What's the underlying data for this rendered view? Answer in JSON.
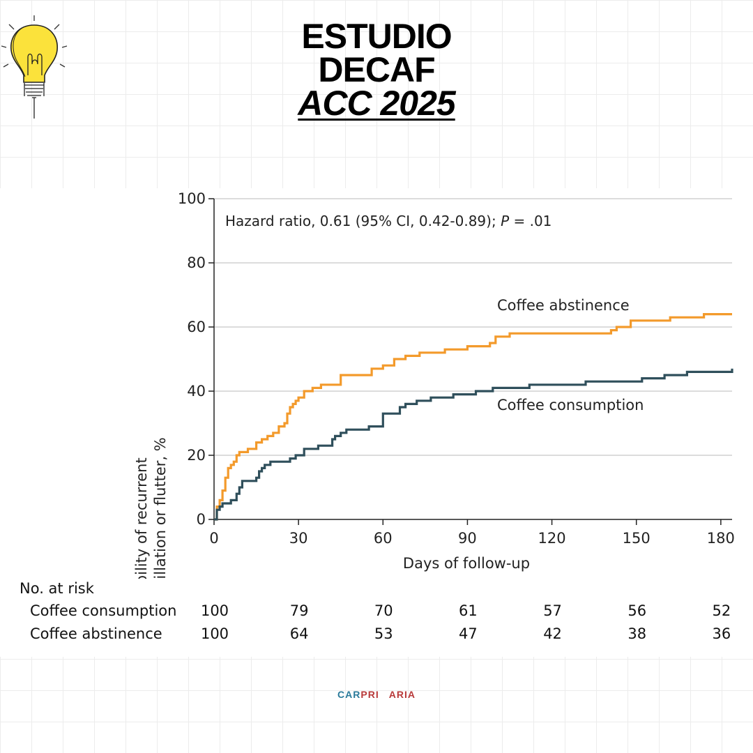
{
  "header": {
    "line1": "ESTUDIO",
    "line2": "DECAF",
    "line3": "ACC 2025"
  },
  "chart_data": {
    "type": "line",
    "step": true,
    "annotation_prefix": "Hazard ratio, 0.61 (95% CI, 0.42-0.89); ",
    "annotation_p": "P",
    "annotation_suffix": " = .01",
    "xlabel": "Days of follow-up",
    "ylabel_line1": "Probability of recurrent",
    "ylabel_line2": "atrial fibrillation or flutter, %",
    "xlim": [
      0,
      184
    ],
    "ylim": [
      0,
      100
    ],
    "xticks": [
      0,
      30,
      60,
      90,
      120,
      150,
      180
    ],
    "yticks": [
      0,
      20,
      40,
      60,
      80,
      100
    ],
    "grid": "horizontal",
    "series": [
      {
        "name": "Coffee abstinence",
        "color": "#f39a2b",
        "x": [
          0,
          1,
          2,
          3,
          4,
          5,
          6,
          7,
          8,
          9,
          12,
          15,
          17,
          19,
          21,
          23,
          25,
          26,
          27,
          28,
          29,
          30,
          32,
          35,
          38,
          45,
          56,
          60,
          64,
          68,
          73,
          82,
          90,
          98,
          100,
          105,
          141,
          143,
          148,
          162,
          174,
          184
        ],
        "y": [
          0,
          4,
          6,
          9,
          13,
          16,
          17,
          18,
          20,
          21,
          22,
          24,
          25,
          26,
          27,
          29,
          30,
          33,
          35,
          36,
          37,
          38,
          40,
          41,
          42,
          45,
          47,
          48,
          50,
          51,
          52,
          53,
          54,
          55,
          57,
          58,
          59,
          60,
          62,
          63,
          64,
          64
        ]
      },
      {
        "name": "Coffee consumption",
        "color": "#2f4f5b",
        "x": [
          0,
          1,
          2,
          3,
          6,
          8,
          9,
          10,
          15,
          16,
          17,
          18,
          20,
          27,
          29,
          32,
          37,
          42,
          43,
          45,
          47,
          55,
          60,
          66,
          68,
          72,
          77,
          85,
          93,
          99,
          112,
          132,
          152,
          160,
          168,
          184
        ],
        "y": [
          0,
          3,
          4,
          5,
          6,
          8,
          10,
          12,
          13,
          15,
          16,
          17,
          18,
          19,
          20,
          22,
          23,
          25,
          26,
          27,
          28,
          29,
          33,
          35,
          36,
          37,
          38,
          39,
          40,
          41,
          42,
          43,
          44,
          45,
          46,
          47
        ]
      }
    ],
    "risk_table": {
      "title": "No. at risk",
      "days": [
        0,
        30,
        60,
        90,
        120,
        150,
        180
      ],
      "rows": [
        {
          "label": "Coffee consumption",
          "values": [
            "100",
            "79",
            "70",
            "61",
            "57",
            "56",
            "52"
          ]
        },
        {
          "label": "Coffee abstinence",
          "values": [
            "100",
            "64",
            "53",
            "47",
            "42",
            "38",
            "36"
          ]
        }
      ]
    }
  },
  "footer": {
    "logo_part1": "CAR",
    "logo_part2": "PRI",
    "logo_part3": "ARIA"
  }
}
